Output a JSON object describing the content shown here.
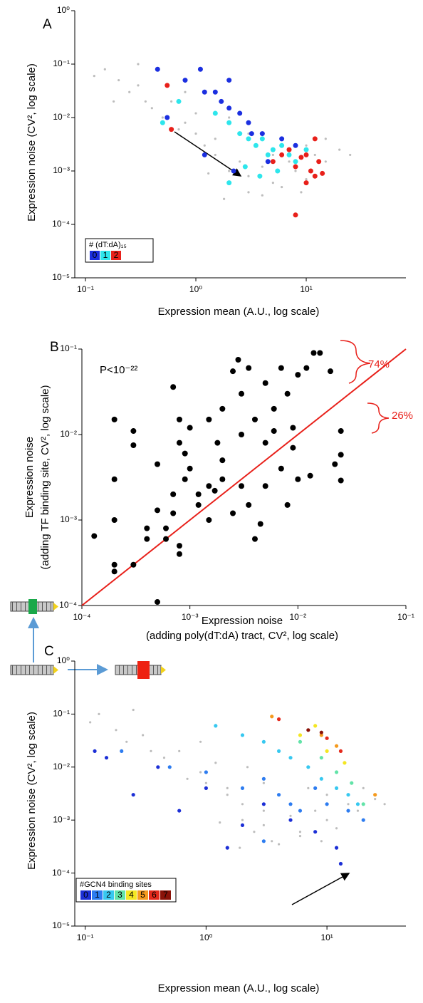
{
  "chart_data": [
    {
      "type": "scatter",
      "label": "A",
      "xlabel": "Expression mean (A.U., log  scale)",
      "ylabel": "Expression noise  (CV², log scale)",
      "log_x": true,
      "log_y": true,
      "xlim": [
        0.08,
        80
      ],
      "ylim": [
        1e-05,
        1
      ],
      "xticks": [
        {
          "value": 0.1,
          "label": "10⁻¹"
        },
        {
          "value": 1,
          "label": "10⁰"
        },
        {
          "value": 10,
          "label": "10¹"
        }
      ],
      "yticks": [
        {
          "value": 1,
          "label": "10⁰"
        },
        {
          "value": 0.1,
          "label": "10⁻¹"
        },
        {
          "value": 0.01,
          "label": "10⁻²"
        },
        {
          "value": 0.001,
          "label": "10⁻³"
        },
        {
          "value": 0.0001,
          "label": "10⁻⁴"
        },
        {
          "value": 1e-05,
          "label": "10⁻⁵"
        }
      ],
      "legend_title": "# (dT:dA)₁₅",
      "background": {
        "color": "#bdbdbd",
        "x": [
          0.12,
          0.15,
          0.2,
          0.25,
          0.3,
          0.35,
          0.4,
          0.5,
          0.6,
          0.7,
          0.8,
          1,
          1,
          1.2,
          1.5,
          1.5,
          2,
          2,
          2.5,
          3,
          3,
          3.5,
          4,
          5,
          5,
          6,
          7,
          8,
          10,
          10,
          12,
          15,
          15,
          20,
          25,
          0.3,
          0.8,
          2,
          1.8,
          4,
          0.18,
          6,
          9,
          3,
          1.3
        ],
        "y": [
          0.06,
          0.08,
          0.05,
          0.03,
          0.04,
          0.02,
          0.015,
          0.01,
          0.02,
          0.006,
          0.008,
          0.005,
          0.012,
          0.003,
          0.004,
          0.002,
          0.001,
          0.0006,
          0.0015,
          0.0008,
          0.0004,
          0.003,
          0.0012,
          0.002,
          0.0006,
          0.004,
          0.0015,
          0.001,
          0.003,
          0.0007,
          0.002,
          0.0015,
          0.004,
          0.0025,
          0.002,
          0.1,
          0.03,
          0.01,
          0.0003,
          0.00035,
          0.02,
          0.0005,
          0.0004,
          0.005,
          0.0009
        ]
      },
      "series": [
        {
          "name": "0",
          "color": "#1b2fe0",
          "x": [
            0.45,
            0.55,
            0.8,
            1.1,
            1.2,
            1.5,
            1.7,
            2,
            2,
            2.5,
            3,
            3.2,
            4,
            2.2,
            4.5,
            8,
            1.2,
            6
          ],
          "y": [
            0.08,
            0.01,
            0.05,
            0.08,
            0.03,
            0.03,
            0.02,
            0.05,
            0.015,
            0.012,
            0.008,
            0.005,
            0.005,
            0.001,
            0.0015,
            0.003,
            0.002,
            0.004
          ]
        },
        {
          "name": "1",
          "color": "#2ee6ec",
          "x": [
            0.5,
            0.7,
            1.5,
            2,
            2.5,
            3,
            3.5,
            4,
            4.5,
            5,
            6,
            7,
            8,
            2.8,
            3.8,
            2,
            10,
            5.5
          ],
          "y": [
            0.008,
            0.02,
            0.012,
            0.008,
            0.005,
            0.004,
            0.003,
            0.004,
            0.002,
            0.0025,
            0.003,
            0.002,
            0.0015,
            0.0012,
            0.0008,
            0.0006,
            0.0025,
            0.001
          ]
        },
        {
          "name": "2",
          "color": "#e8201a",
          "x": [
            0.55,
            0.6,
            5,
            6,
            7,
            8,
            9,
            10,
            11,
            12,
            13,
            14,
            10,
            8,
            12
          ],
          "y": [
            0.04,
            0.006,
            0.0015,
            0.002,
            0.0025,
            0.0012,
            0.0018,
            0.002,
            0.001,
            0.0008,
            0.0015,
            0.0009,
            0.0006,
            0.00015,
            0.004
          ]
        }
      ]
    },
    {
      "type": "scatter",
      "label": "B",
      "xlabel": [
        "Expression noise",
        "(adding poly(dT:dA) tract, CV², log scale)"
      ],
      "ylabel": [
        "Expression noise",
        "(adding TF binding site, CV², log scale)"
      ],
      "log_x": true,
      "log_y": true,
      "xlim": [
        0.0001,
        0.1
      ],
      "ylim": [
        0.0001,
        0.1
      ],
      "xticks": [
        {
          "value": 0.0001,
          "label": "10⁻⁴"
        },
        {
          "value": 0.001,
          "label": "10⁻³"
        },
        {
          "value": 0.01,
          "label": "10⁻²"
        },
        {
          "value": 0.1,
          "label": "10⁻¹"
        }
      ],
      "yticks": [
        {
          "value": 0.1,
          "label": "10⁻¹"
        },
        {
          "value": 0.01,
          "label": "10⁻²"
        },
        {
          "value": 0.001,
          "label": "10⁻³"
        },
        {
          "value": 0.0001,
          "label": "10⁻⁴"
        }
      ],
      "diagonal": true,
      "diagonal_color": "#e8201a",
      "annotations": [
        "P<10⁻²²",
        "74%",
        "26%"
      ],
      "series": [
        {
          "color": "#000000",
          "x": [
            0.00013,
            0.0002,
            0.0002,
            0.0002,
            0.0002,
            0.0002,
            0.0003,
            0.0003,
            0.0003,
            0.0004,
            0.0004,
            0.0005,
            0.0005,
            0.0005,
            0.0006,
            0.0006,
            0.0007,
            0.0007,
            0.0007,
            0.0008,
            0.0008,
            0.0008,
            0.0008,
            0.0009,
            0.0009,
            0.001,
            0.001,
            0.0012,
            0.0012,
            0.0015,
            0.0015,
            0.0015,
            0.0018,
            0.002,
            0.002,
            0.002,
            0.0025,
            0.0025,
            0.003,
            0.003,
            0.003,
            0.0035,
            0.0035,
            0.004,
            0.004,
            0.005,
            0.005,
            0.005,
            0.006,
            0.006,
            0.007,
            0.007,
            0.008,
            0.008,
            0.009,
            0.009,
            0.01,
            0.01,
            0.012,
            0.014,
            0.016,
            0.02,
            0.022,
            0.025,
            0.025,
            0.025,
            0.013,
            0.0045,
            0.0028,
            0.0017
          ],
          "y": [
            0.00065,
            0.015,
            0.003,
            0.001,
            0.0003,
            0.00025,
            0.011,
            0.0075,
            0.0003,
            0.0006,
            0.0008,
            0.0013,
            0.0045,
            0.00011,
            0.0008,
            0.0006,
            0.002,
            0.0012,
            0.036,
            0.0005,
            0.015,
            0.008,
            0.0004,
            0.003,
            0.006,
            0.012,
            0.004,
            0.002,
            0.0015,
            0.015,
            0.0025,
            0.001,
            0.008,
            0.02,
            0.005,
            0.003,
            0.055,
            0.0012,
            0.03,
            0.01,
            0.0025,
            0.06,
            0.0015,
            0.015,
            0.0006,
            0.04,
            0.008,
            0.0025,
            0.02,
            0.011,
            0.06,
            0.004,
            0.03,
            0.0015,
            0.012,
            0.007,
            0.05,
            0.003,
            0.06,
            0.09,
            0.09,
            0.055,
            0.0045,
            0.011,
            0.0058,
            0.0029,
            0.0033,
            0.0009,
            0.075,
            0.0022
          ]
        }
      ]
    },
    {
      "type": "scatter",
      "label": "C",
      "xlabel": "Expression mean (A.U., log  scale)",
      "ylabel": "Expression noise  (CV², log scale)",
      "log_x": true,
      "log_y": true,
      "xlim": [
        0.082,
        45
      ],
      "ylim": [
        1e-05,
        1
      ],
      "xticks": [
        {
          "value": 0.1,
          "label": "10⁻¹"
        },
        {
          "value": 1,
          "label": "10⁰"
        },
        {
          "value": 10,
          "label": "10¹"
        }
      ],
      "yticks": [
        {
          "value": 1,
          "label": "10⁰"
        },
        {
          "value": 0.1,
          "label": "10⁻¹"
        },
        {
          "value": 0.01,
          "label": "10⁻²"
        },
        {
          "value": 0.001,
          "label": "10⁻³"
        },
        {
          "value": 0.0001,
          "label": "10⁻⁴"
        },
        {
          "value": 1e-05,
          "label": "10⁻⁵"
        }
      ],
      "legend_title": "#GCN4 binding sites",
      "background": {
        "color": "#bdbdbd",
        "x": [
          0.11,
          0.13,
          0.18,
          0.22,
          0.3,
          0.35,
          0.45,
          0.5,
          0.6,
          0.7,
          0.9,
          1,
          1.2,
          1.5,
          1.5,
          2,
          2,
          2.5,
          3,
          3,
          3.5,
          4,
          5,
          5,
          6,
          7,
          8,
          10,
          10,
          12,
          15,
          18,
          20,
          25,
          30,
          0.25,
          0.9,
          2.2,
          1.9,
          4,
          6,
          9,
          3,
          1.3
        ],
        "y": [
          0.07,
          0.1,
          0.05,
          0.03,
          0.04,
          0.02,
          0.015,
          0.01,
          0.02,
          0.006,
          0.008,
          0.005,
          0.012,
          0.003,
          0.004,
          0.002,
          0.001,
          0.0006,
          0.0015,
          0.0008,
          0.0004,
          0.003,
          0.0012,
          0.002,
          0.0006,
          0.004,
          0.0015,
          0.001,
          0.003,
          0.0007,
          0.002,
          0.0015,
          0.004,
          0.0025,
          0.002,
          0.12,
          0.03,
          0.01,
          0.0003,
          0.00035,
          0.0005,
          0.0004,
          0.005,
          0.0009
        ]
      },
      "series": [
        {
          "name": "0",
          "color": "#1c2fd6",
          "x": [
            0.12,
            0.15,
            0.25,
            0.4,
            0.6,
            1,
            1.5,
            2,
            3,
            5,
            8,
            12,
            13
          ],
          "y": [
            0.02,
            0.015,
            0.003,
            0.01,
            0.0015,
            0.004,
            0.0003,
            0.0008,
            0.002,
            0.001,
            0.0006,
            0.0003,
            0.00015
          ]
        },
        {
          "name": "1",
          "color": "#2d7cf0",
          "x": [
            0.2,
            0.5,
            1,
            2,
            3,
            4,
            5,
            6,
            8,
            10,
            15,
            20,
            3
          ],
          "y": [
            0.02,
            0.01,
            0.008,
            0.004,
            0.006,
            0.003,
            0.002,
            0.0015,
            0.004,
            0.002,
            0.0015,
            0.001,
            0.0004
          ]
        },
        {
          "name": "2",
          "color": "#37c8f0",
          "x": [
            1.2,
            2,
            3,
            4,
            5,
            7,
            9,
            12,
            15,
            18
          ],
          "y": [
            0.06,
            0.04,
            0.03,
            0.02,
            0.015,
            0.01,
            0.006,
            0.004,
            0.003,
            0.002
          ]
        },
        {
          "name": "3",
          "color": "#62e3a8",
          "x": [
            6,
            9,
            12,
            16,
            20
          ],
          "y": [
            0.03,
            0.015,
            0.008,
            0.005,
            0.002
          ]
        },
        {
          "name": "4",
          "color": "#f4e622",
          "x": [
            6,
            8,
            10,
            14
          ],
          "y": [
            0.04,
            0.06,
            0.02,
            0.012
          ]
        },
        {
          "name": "5",
          "color": "#f59a1e",
          "x": [
            3.5,
            9,
            12,
            25
          ],
          "y": [
            0.09,
            0.04,
            0.025,
            0.003
          ]
        },
        {
          "name": "6",
          "color": "#e42a1c",
          "x": [
            4,
            10,
            13
          ],
          "y": [
            0.08,
            0.035,
            0.02
          ]
        },
        {
          "name": "7",
          "color": "#8a1208",
          "x": [
            7,
            9
          ],
          "y": [
            0.05,
            0.045
          ]
        }
      ]
    }
  ]
}
